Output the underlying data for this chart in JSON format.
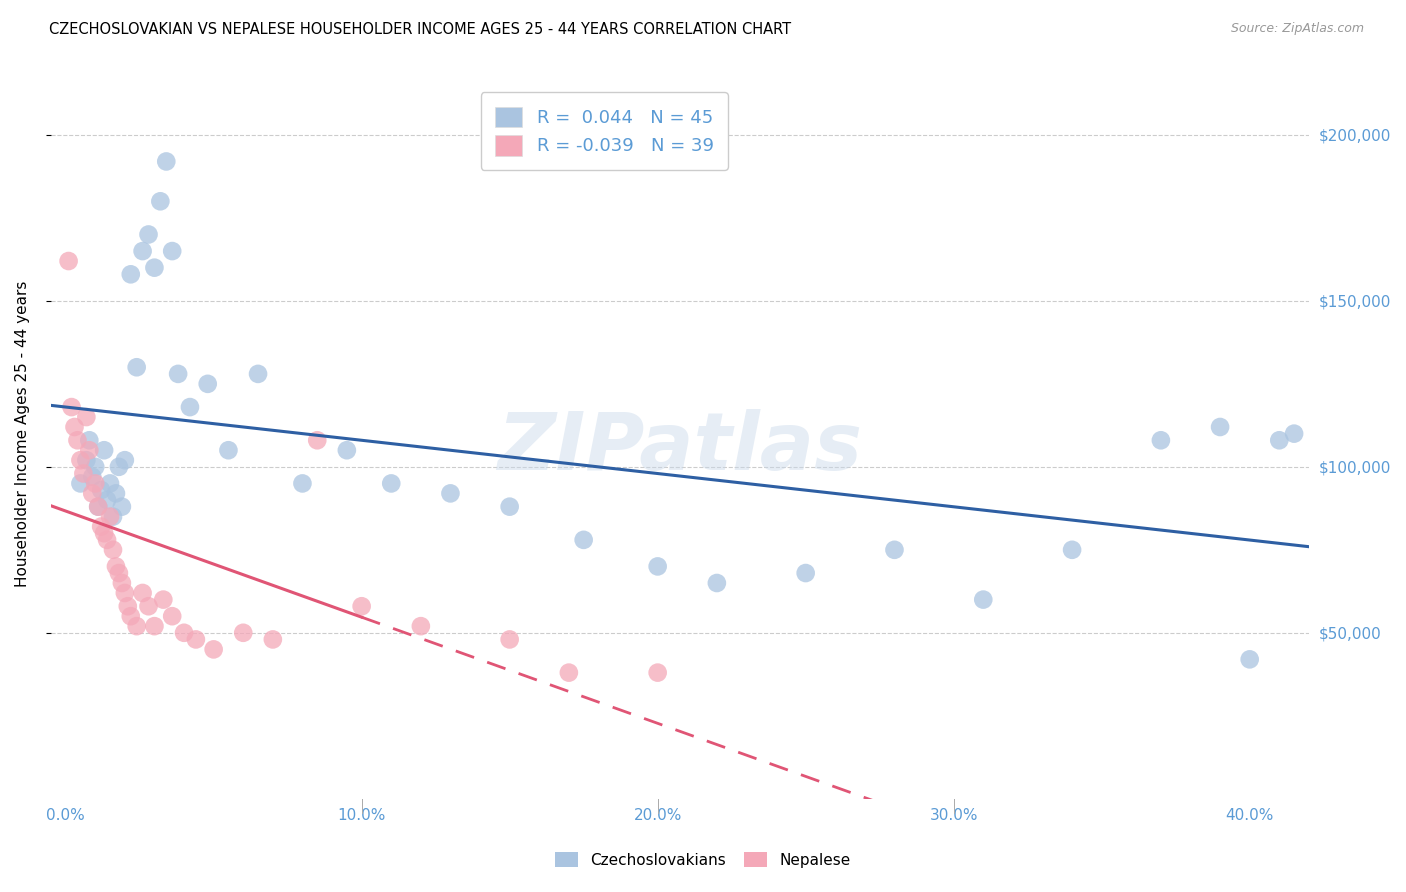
{
  "title": "CZECHOSLOVAKIAN VS NEPALESE HOUSEHOLDER INCOME AGES 25 - 44 YEARS CORRELATION CHART",
  "source": "Source: ZipAtlas.com",
  "ylabel": "Householder Income Ages 25 - 44 years",
  "xlabel_ticks": [
    "0.0%",
    "10.0%",
    "20.0%",
    "30.0%",
    "40.0%"
  ],
  "xlabel_vals": [
    0.0,
    0.1,
    0.2,
    0.3,
    0.4
  ],
  "ytick_labels": [
    "$50,000",
    "$100,000",
    "$150,000",
    "$200,000"
  ],
  "ytick_vals": [
    50000,
    100000,
    150000,
    200000
  ],
  "ylim": [
    0,
    220000
  ],
  "xlim": [
    -0.005,
    0.42
  ],
  "background_color": "#ffffff",
  "grid_color": "#cccccc",
  "watermark": "ZIPatlas",
  "legend_r1": "R =  0.044   N = 45",
  "legend_r2": "R = -0.039   N = 39",
  "blue_color": "#aac4e0",
  "pink_color": "#f4a8b8",
  "blue_line_color": "#2e5fa3",
  "pink_line_color": "#e05575",
  "czecho_x": [
    0.005,
    0.007,
    0.008,
    0.009,
    0.01,
    0.011,
    0.012,
    0.013,
    0.014,
    0.015,
    0.016,
    0.017,
    0.018,
    0.019,
    0.02,
    0.022,
    0.024,
    0.026,
    0.028,
    0.03,
    0.032,
    0.034,
    0.036,
    0.038,
    0.042,
    0.048,
    0.055,
    0.065,
    0.08,
    0.095,
    0.11,
    0.13,
    0.15,
    0.175,
    0.2,
    0.22,
    0.25,
    0.28,
    0.31,
    0.34,
    0.37,
    0.39,
    0.4,
    0.41,
    0.415
  ],
  "czecho_y": [
    95000,
    102000,
    108000,
    97000,
    100000,
    88000,
    93000,
    105000,
    90000,
    95000,
    85000,
    92000,
    100000,
    88000,
    102000,
    158000,
    130000,
    165000,
    170000,
    160000,
    180000,
    192000,
    165000,
    128000,
    118000,
    125000,
    105000,
    128000,
    95000,
    105000,
    95000,
    92000,
    88000,
    78000,
    70000,
    65000,
    68000,
    75000,
    60000,
    75000,
    108000,
    112000,
    42000,
    108000,
    110000
  ],
  "nepal_x": [
    0.001,
    0.002,
    0.003,
    0.004,
    0.005,
    0.006,
    0.007,
    0.008,
    0.009,
    0.01,
    0.011,
    0.012,
    0.013,
    0.014,
    0.015,
    0.016,
    0.017,
    0.018,
    0.019,
    0.02,
    0.021,
    0.022,
    0.024,
    0.026,
    0.028,
    0.03,
    0.033,
    0.036,
    0.04,
    0.044,
    0.05,
    0.06,
    0.07,
    0.085,
    0.1,
    0.12,
    0.15,
    0.17,
    0.2
  ],
  "nepal_y": [
    162000,
    118000,
    112000,
    108000,
    102000,
    98000,
    115000,
    105000,
    92000,
    95000,
    88000,
    82000,
    80000,
    78000,
    85000,
    75000,
    70000,
    68000,
    65000,
    62000,
    58000,
    55000,
    52000,
    62000,
    58000,
    52000,
    60000,
    55000,
    50000,
    48000,
    45000,
    50000,
    48000,
    108000,
    58000,
    52000,
    48000,
    38000,
    38000
  ]
}
